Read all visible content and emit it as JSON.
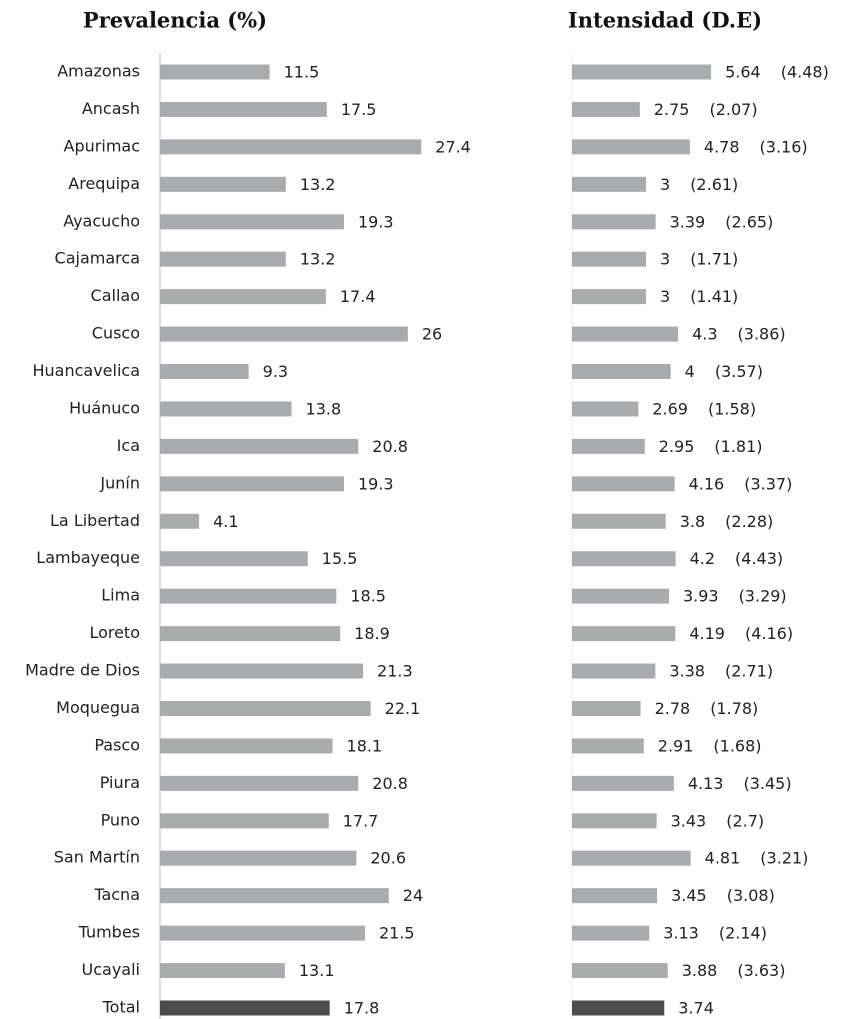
{
  "chart_data": [
    {
      "type": "barh",
      "title": "Prevalencia (%)",
      "categories": [
        "Amazonas",
        "Ancash",
        "Apurimac",
        "Arequipa",
        "Ayacucho",
        "Cajamarca",
        "Callao",
        "Cusco",
        "Huancavelica",
        "Huánuco",
        "Ica",
        "Junín",
        "La Libertad",
        "Lambayeque",
        "Lima",
        "Loreto",
        "Madre de Dios",
        "Moquegua",
        "Pasco",
        "Piura",
        "Puno",
        "San Martín",
        "Tacna",
        "Tumbes",
        "Ucayali",
        "Total"
      ],
      "values": [
        11.5,
        17.5,
        27.4,
        13.2,
        19.3,
        13.2,
        17.4,
        26,
        9.3,
        13.8,
        20.8,
        19.3,
        4.1,
        15.5,
        18.5,
        18.9,
        21.3,
        22.1,
        18.1,
        20.8,
        17.7,
        20.6,
        24,
        21.5,
        13.1,
        17.8
      ],
      "colors": [
        "#aaabae",
        "#aaabae",
        "#aaabae",
        "#aaabae",
        "#aaabae",
        "#aaabae",
        "#aaabae",
        "#aaabae",
        "#aaabae",
        "#aaabae",
        "#aaabae",
        "#aaabae",
        "#aaabae",
        "#aaabae",
        "#aaabae",
        "#aaabae",
        "#aaabae",
        "#aaabae",
        "#aaabae",
        "#aaabae",
        "#aaabae",
        "#aaabae",
        "#aaabae",
        "#aaabae",
        "#aaabae",
        "#4d4d4d"
      ],
      "xlim": [
        0,
        30
      ]
    },
    {
      "type": "barh",
      "title": "Intensidad (D.E)",
      "values": [
        5.64,
        2.75,
        4.78,
        3,
        3.39,
        3,
        3,
        4.3,
        4,
        2.69,
        2.95,
        4.16,
        3.8,
        4.2,
        3.93,
        4.19,
        3.38,
        2.78,
        2.91,
        4.13,
        3.43,
        4.81,
        3.45,
        3.13,
        3.88,
        3.74
      ],
      "sd_labels": [
        "(4.48)",
        "(2.07)",
        "(3.16)",
        "(2.61)",
        "(2.65)",
        "(1.71)",
        "(1.41)",
        "(3.86)",
        "(3.57)",
        "(1.58)",
        "(1.81)",
        "(3.37)",
        "(2.28)",
        "(4.43)",
        "(3.29)",
        "(4.16)",
        "(2.71)",
        "(1.78)",
        "(1.68)",
        "(3.45)",
        "(2.7)",
        "(3.21)",
        "(3.08)",
        "(2.14)",
        "(3.63)",
        null
      ],
      "colors": [
        "#aaabae",
        "#aaabae",
        "#aaabae",
        "#aaabae",
        "#aaabae",
        "#aaabae",
        "#aaabae",
        "#aaabae",
        "#aaabae",
        "#aaabae",
        "#aaabae",
        "#aaabae",
        "#aaabae",
        "#aaabae",
        "#aaabae",
        "#aaabae",
        "#aaabae",
        "#aaabae",
        "#aaabae",
        "#aaabae",
        "#aaabae",
        "#aaabae",
        "#aaabae",
        "#aaabae",
        "#aaabae",
        "#4d4d4d"
      ],
      "xlim": [
        0,
        6
      ]
    }
  ]
}
